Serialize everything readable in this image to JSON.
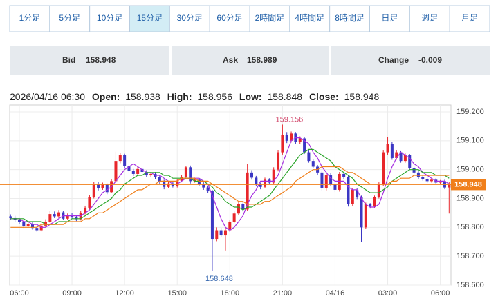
{
  "tabs": [
    "1分足",
    "5分足",
    "10分足",
    "15分足",
    "30分足",
    "60分足",
    "2時間足",
    "4時間足",
    "8時間足",
    "日足",
    "週足",
    "月足"
  ],
  "active_tab": 3,
  "quote": {
    "bid_label": "Bid",
    "bid": "158.948",
    "ask_label": "Ask",
    "ask": "158.989",
    "change_label": "Change",
    "change": "-0.009"
  },
  "ohlc_header": {
    "datetime": "2026/04/16 06:30",
    "open_label": "Open:",
    "high_label": "High:",
    "low_label": "Low:",
    "close_label": "Close:"
  },
  "chart_data": {
    "type": "candlestick",
    "categories": [
      null,
      null,
      "06:00",
      null,
      null,
      null,
      null,
      null,
      null,
      null,
      null,
      null,
      null,
      null,
      "09:00",
      null,
      null,
      null,
      null,
      null,
      null,
      null,
      null,
      null,
      null,
      null,
      "12:00",
      null,
      null,
      null,
      null,
      null,
      null,
      null,
      null,
      null,
      null,
      null,
      "15:00",
      null,
      null,
      null,
      null,
      null,
      null,
      null,
      null,
      null,
      null,
      null,
      "18:00",
      null,
      null,
      null,
      null,
      null,
      null,
      null,
      null,
      null,
      null,
      null,
      "21:00",
      null,
      null,
      null,
      null,
      null,
      null,
      null,
      null,
      null,
      null,
      null,
      "04/16",
      null,
      null,
      null,
      null,
      null,
      null,
      null,
      null,
      null,
      null,
      null,
      "03:00",
      null,
      null,
      null,
      null,
      null,
      null,
      null,
      null,
      null,
      null,
      null,
      "06:00",
      null,
      null
    ],
    "open": [
      158.838,
      158.832,
      158.825,
      158.818,
      158.805,
      158.812,
      158.798,
      158.79,
      158.806,
      158.82,
      158.846,
      158.838,
      158.852,
      158.83,
      158.842,
      158.836,
      158.828,
      158.85,
      158.868,
      158.905,
      158.95,
      158.935,
      158.948,
      158.922,
      158.96,
      159.03,
      159.05,
      159.012,
      158.995,
      158.985,
      159.002,
      158.992,
      158.98,
      158.985,
      158.975,
      158.958,
      158.94,
      158.952,
      158.944,
      158.962,
      158.975,
      159.008,
      158.96,
      158.965,
      158.95,
      158.938,
      158.925,
      158.76,
      158.79,
      158.772,
      158.79,
      158.82,
      158.848,
      158.88,
      158.862,
      158.99,
      158.972,
      158.95,
      158.94,
      158.965,
      158.955,
      159.0,
      159.06,
      159.12,
      159.1,
      159.125,
      159.095,
      159.108,
      159.06,
      159.03,
      159.01,
      158.99,
      158.935,
      158.98,
      158.95,
      158.93,
      158.985,
      158.975,
      158.88,
      158.93,
      158.905,
      158.8,
      158.88,
      158.872,
      158.905,
      158.95,
      159.06,
      159.09,
      159.04,
      159.06,
      159.03,
      159.05,
      159.005,
      158.99,
      158.975,
      158.968,
      158.96,
      158.965,
      158.955,
      158.96,
      158.938
    ],
    "high": [
      158.845,
      158.84,
      158.832,
      158.824,
      158.818,
      158.82,
      158.805,
      158.812,
      158.828,
      158.858,
      158.855,
      158.86,
      158.858,
      158.848,
      158.85,
      158.842,
      158.856,
      158.875,
      158.912,
      158.958,
      158.958,
      158.955,
      158.952,
      158.968,
      159.062,
      159.058,
      159.055,
      159.02,
      159.002,
      159.01,
      159.008,
      158.998,
      158.99,
      158.992,
      158.982,
      158.965,
      158.958,
      158.96,
      158.968,
      158.982,
      159.012,
      159.014,
      158.972,
      158.97,
      158.956,
      158.942,
      158.93,
      158.8,
      158.798,
      158.798,
      158.826,
      158.855,
      158.888,
      158.886,
      159.02,
      158.998,
      158.978,
      158.955,
      158.972,
      158.97,
      159.008,
      159.068,
      159.156,
      159.13,
      159.132,
      159.13,
      159.115,
      159.114,
      159.066,
      159.036,
      159.016,
      158.995,
      158.986,
      158.988,
      158.956,
      158.992,
      158.99,
      158.982,
      158.936,
      158.935,
      158.91,
      158.886,
      158.884,
      158.91,
      158.956,
      159.066,
      159.112,
      159.095,
      159.066,
      159.064,
      159.056,
      159.054,
      159.01,
      158.995,
      158.98,
      158.972,
      158.97,
      158.97,
      158.964,
      158.965,
      158.956
    ],
    "low": [
      158.825,
      158.82,
      158.812,
      158.798,
      158.8,
      158.792,
      158.785,
      158.786,
      158.8,
      158.815,
      158.832,
      158.832,
      158.825,
      158.826,
      158.83,
      158.822,
      158.824,
      158.845,
      158.862,
      158.9,
      158.928,
      158.93,
      158.915,
      158.918,
      158.955,
      159.022,
      159.005,
      158.988,
      158.978,
      158.98,
      158.986,
      158.974,
      158.975,
      158.968,
      158.95,
      158.932,
      158.935,
      158.938,
      158.938,
      158.956,
      158.97,
      158.952,
      158.955,
      158.944,
      158.93,
      158.918,
      158.648,
      158.752,
      158.765,
      158.72,
      158.784,
      158.815,
      158.842,
      158.855,
      158.856,
      158.965,
      158.944,
      158.932,
      158.935,
      158.948,
      158.95,
      158.994,
      159.052,
      159.092,
      159.094,
      159.088,
      159.09,
      159.054,
      159.024,
      159.004,
      158.982,
      158.928,
      158.928,
      158.944,
      158.922,
      158.924,
      158.968,
      158.872,
      158.874,
      158.898,
      158.75,
      158.795,
      158.865,
      158.866,
      158.9,
      158.944,
      159.052,
      159.034,
      159.034,
      159.024,
      159.024,
      158.998,
      158.984,
      158.968,
      158.962,
      158.954,
      158.955,
      158.95,
      158.95,
      158.932,
      158.848
    ],
    "close": [
      158.832,
      158.825,
      158.818,
      158.805,
      158.812,
      158.798,
      158.79,
      158.806,
      158.82,
      158.846,
      158.838,
      158.852,
      158.83,
      158.842,
      158.836,
      158.828,
      158.85,
      158.868,
      158.905,
      158.95,
      158.935,
      158.948,
      158.922,
      158.96,
      159.03,
      159.05,
      159.012,
      158.995,
      158.985,
      159.002,
      158.992,
      158.98,
      158.985,
      158.975,
      158.958,
      158.94,
      158.952,
      158.944,
      158.962,
      158.975,
      159.008,
      158.96,
      158.965,
      158.95,
      158.938,
      158.925,
      158.76,
      158.79,
      158.772,
      158.79,
      158.82,
      158.848,
      158.88,
      158.862,
      158.99,
      158.972,
      158.95,
      158.94,
      158.965,
      158.955,
      159.0,
      159.06,
      159.12,
      159.1,
      159.125,
      159.095,
      159.108,
      159.06,
      159.03,
      159.01,
      158.99,
      158.935,
      158.98,
      158.95,
      158.93,
      158.985,
      158.975,
      158.88,
      158.93,
      158.905,
      158.8,
      158.88,
      158.872,
      158.905,
      158.95,
      159.06,
      159.09,
      159.04,
      159.06,
      159.03,
      159.05,
      159.005,
      158.99,
      158.975,
      158.968,
      158.96,
      158.965,
      158.955,
      158.96,
      158.938,
      158.948
    ],
    "up_color": "#e8262b",
    "down_color": "#3b37c4",
    "series": [
      {
        "color": "#a52ee0",
        "values": [
          158.83,
          158.83,
          158.83,
          158.82,
          158.82,
          158.81,
          158.81,
          158.8,
          158.8,
          158.81,
          158.82,
          158.83,
          158.84,
          158.84,
          158.84,
          158.84,
          158.84,
          158.85,
          158.86,
          158.88,
          158.9,
          158.92,
          158.93,
          158.94,
          158.96,
          158.98,
          159.0,
          159.01,
          159.02,
          159.01,
          159.0,
          158.99,
          158.99,
          158.98,
          158.98,
          158.97,
          158.96,
          158.95,
          158.95,
          158.96,
          158.97,
          158.97,
          158.97,
          158.97,
          158.96,
          158.95,
          158.91,
          158.87,
          158.83,
          158.8,
          158.79,
          158.8,
          158.82,
          158.84,
          158.88,
          158.91,
          158.93,
          158.96,
          158.96,
          158.96,
          158.96,
          158.98,
          159.02,
          159.06,
          159.1,
          159.11,
          159.11,
          159.1,
          159.09,
          159.06,
          159.04,
          159.01,
          158.99,
          158.97,
          158.96,
          158.96,
          158.96,
          158.94,
          158.93,
          158.93,
          158.9,
          158.88,
          158.87,
          158.87,
          158.88,
          158.92,
          158.97,
          159.01,
          159.04,
          159.06,
          159.05,
          159.04,
          159.02,
          159.01,
          158.99,
          158.98,
          158.97,
          158.96,
          158.96,
          158.96,
          158.95
        ]
      },
      {
        "color": "#2aa52a",
        "values": [
          158.83,
          158.83,
          158.83,
          158.83,
          158.82,
          158.82,
          158.82,
          158.82,
          158.81,
          158.81,
          158.81,
          158.82,
          158.82,
          158.82,
          158.83,
          158.83,
          158.83,
          158.84,
          158.85,
          158.86,
          158.87,
          158.88,
          158.89,
          158.9,
          158.92,
          158.93,
          158.95,
          158.96,
          158.97,
          158.98,
          158.98,
          158.99,
          158.99,
          158.99,
          158.99,
          158.98,
          158.98,
          158.97,
          158.97,
          158.97,
          158.97,
          158.97,
          158.96,
          158.96,
          158.96,
          158.95,
          158.94,
          158.92,
          158.91,
          158.89,
          158.88,
          158.87,
          158.87,
          158.86,
          158.87,
          158.87,
          158.88,
          158.89,
          158.9,
          158.91,
          158.93,
          158.95,
          158.97,
          158.99,
          159.01,
          159.03,
          159.05,
          159.06,
          159.07,
          159.07,
          159.06,
          159.05,
          159.04,
          159.03,
          159.01,
          159.0,
          158.99,
          158.98,
          158.97,
          158.95,
          158.94,
          158.93,
          158.92,
          158.92,
          158.92,
          158.93,
          158.94,
          158.96,
          158.97,
          158.98,
          158.99,
          159.0,
          159.0,
          159.0,
          158.99,
          158.99,
          158.99,
          158.98,
          158.98,
          158.98,
          158.97
        ]
      },
      {
        "color": "#f07f1a",
        "values": [
          158.8,
          158.8,
          158.8,
          158.8,
          158.8,
          158.8,
          158.8,
          158.81,
          158.81,
          158.81,
          158.81,
          158.81,
          158.81,
          158.82,
          158.82,
          158.82,
          158.82,
          158.83,
          158.83,
          158.84,
          158.85,
          158.85,
          158.86,
          158.87,
          158.88,
          158.89,
          158.9,
          158.91,
          158.92,
          158.93,
          158.93,
          158.94,
          158.95,
          158.95,
          158.96,
          158.96,
          158.96,
          158.96,
          158.96,
          158.97,
          158.97,
          158.97,
          158.97,
          158.96,
          158.96,
          158.96,
          158.95,
          158.94,
          158.93,
          158.92,
          158.91,
          158.9,
          158.89,
          158.89,
          158.88,
          158.88,
          158.88,
          158.88,
          158.89,
          158.89,
          158.9,
          158.91,
          158.92,
          158.93,
          158.94,
          158.96,
          158.97,
          158.98,
          158.99,
          159.0,
          159.0,
          159.01,
          159.01,
          159.01,
          159.01,
          159.01,
          159.0,
          158.99,
          158.99,
          158.98,
          158.97,
          158.96,
          158.95,
          158.95,
          158.95,
          158.95,
          158.95,
          158.96,
          158.96,
          158.97,
          158.97,
          158.97,
          158.98,
          158.98,
          158.98,
          158.98,
          158.98,
          158.98,
          158.98,
          158.98,
          158.98
        ]
      }
    ],
    "price_line_color": "#f07f1a",
    "ylim": [
      158.6,
      159.2
    ],
    "yticks": [
      {
        "value": 158.6,
        "label": "158.600"
      },
      {
        "value": 158.7,
        "label": "158.700"
      },
      {
        "value": 158.8,
        "label": "158.800"
      },
      {
        "value": 158.9,
        "label": "158.900"
      },
      {
        "value": 159.0,
        "label": "159.000"
      },
      {
        "value": 159.1,
        "label": "159.100"
      },
      {
        "value": 159.2,
        "label": "159.200"
      }
    ],
    "grid": true
  }
}
